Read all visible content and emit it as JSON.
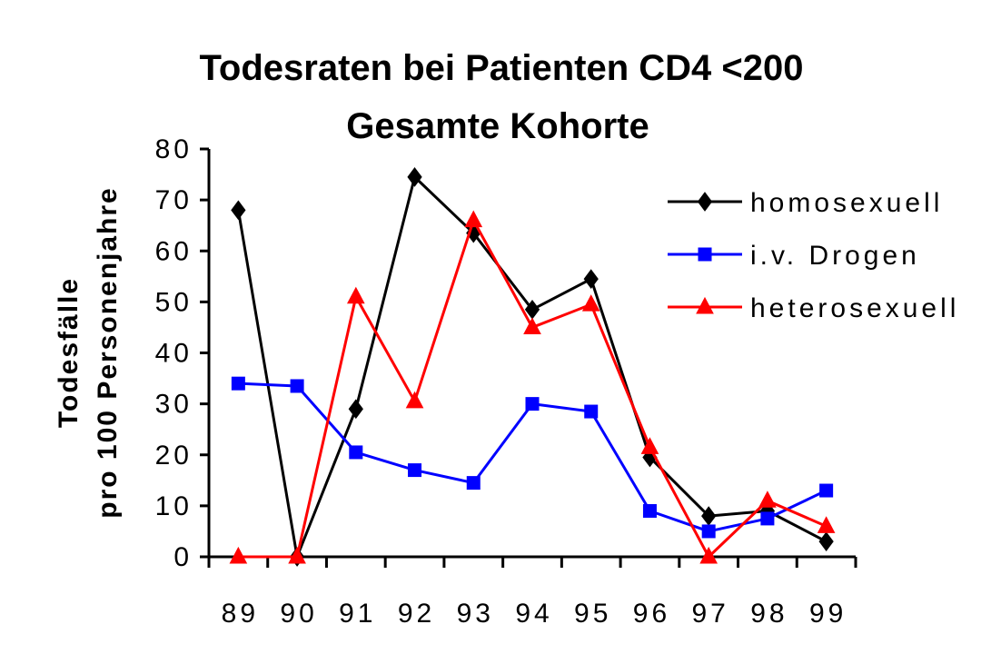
{
  "chart_data": {
    "type": "line",
    "title": "Todesraten bei Patienten CD4 <200",
    "subtitle": "Gesamte Kohorte",
    "xlabel": "",
    "ylabel_line1": "Todesfälle",
    "ylabel_line2": "pro 100 Personenjahre",
    "categories": [
      "89",
      "90",
      "91",
      "92",
      "93",
      "94",
      "95",
      "96",
      "97",
      "98",
      "99"
    ],
    "ylim": [
      0,
      80
    ],
    "yticks": [
      "0",
      "10",
      "20",
      "30",
      "40",
      "50",
      "60",
      "70",
      "80"
    ],
    "grid": false,
    "legend_position": "right",
    "series": [
      {
        "name": "homosexuell",
        "color": "#000000",
        "marker": "diamond",
        "values": [
          68,
          0,
          29,
          74.5,
          63.5,
          48.5,
          54.5,
          19.5,
          8,
          9,
          3
        ]
      },
      {
        "name": "i.v. Drogen",
        "color": "#0000ff",
        "marker": "square",
        "values": [
          34,
          33.5,
          20.5,
          17,
          14.5,
          30,
          28.5,
          9,
          5,
          7.5,
          13
        ]
      },
      {
        "name": "heterosexuell",
        "color": "#ff0000",
        "marker": "triangle",
        "values": [
          0,
          0,
          51,
          30.5,
          66,
          45,
          49.5,
          21.5,
          0,
          11,
          6
        ]
      }
    ]
  }
}
